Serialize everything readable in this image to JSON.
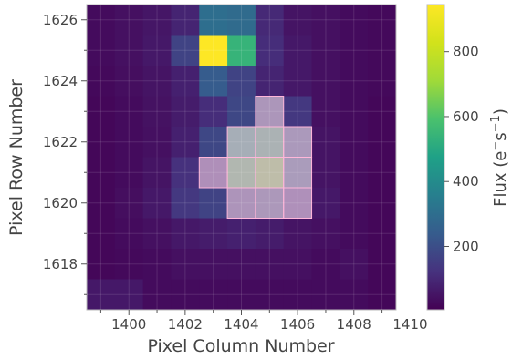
{
  "chart_data": {
    "type": "heatmap",
    "title": "",
    "xlabel": "Pixel Column Number",
    "ylabel": "Pixel Row Number",
    "col_range": [
      1399,
      1410
    ],
    "row_range": [
      1617,
      1627
    ],
    "x_ticks": [
      "1400",
      "1402",
      "1404",
      "1406",
      "1408",
      "1410"
    ],
    "y_ticks": [
      "1618",
      "1620",
      "1622",
      "1624",
      "1626"
    ],
    "grid": true,
    "colormap": "viridis",
    "colorbar": {
      "label_base": "Flux (e",
      "label_sup1": "−",
      "label_mid": "s",
      "label_sup2": "−1",
      "label_end": ")",
      "range": [
        5,
        945
      ],
      "ticks": [
        "200",
        "400",
        "600",
        "800"
      ]
    },
    "mask_color": "#ffb6d9",
    "rows_top_to_bottom": [
      1626,
      1625,
      1624,
      1623,
      1622,
      1621,
      1620,
      1619,
      1618,
      1617
    ],
    "cols_left_to_right": [
      1399,
      1400,
      1401,
      1402,
      1403,
      1404,
      1405,
      1406,
      1407,
      1408,
      1409
    ],
    "flux": [
      [
        30,
        40,
        55,
        90,
        300,
        290,
        100,
        50,
        40,
        30,
        25
      ],
      [
        30,
        40,
        60,
        170,
        945,
        540,
        110,
        60,
        40,
        30,
        25
      ],
      [
        25,
        35,
        50,
        80,
        240,
        170,
        90,
        60,
        40,
        30,
        25
      ],
      [
        20,
        30,
        45,
        70,
        110,
        180,
        280,
        140,
        40,
        30,
        20
      ],
      [
        20,
        30,
        40,
        80,
        180,
        480,
        520,
        300,
        50,
        30,
        20
      ],
      [
        20,
        30,
        50,
        120,
        220,
        560,
        620,
        330,
        50,
        30,
        20
      ],
      [
        20,
        35,
        60,
        140,
        170,
        260,
        290,
        230,
        60,
        30,
        20
      ],
      [
        20,
        30,
        40,
        60,
        70,
        80,
        70,
        50,
        40,
        30,
        20
      ],
      [
        20,
        25,
        30,
        40,
        40,
        40,
        40,
        40,
        30,
        40,
        20
      ],
      [
        60,
        60,
        30,
        30,
        30,
        30,
        30,
        30,
        30,
        30,
        20
      ]
    ],
    "aperture_mask": [
      [
        0,
        0,
        0,
        0,
        0,
        0,
        0,
        0,
        0,
        0,
        0
      ],
      [
        0,
        0,
        0,
        0,
        0,
        0,
        0,
        0,
        0,
        0,
        0
      ],
      [
        0,
        0,
        0,
        0,
        0,
        0,
        0,
        0,
        0,
        0,
        0
      ],
      [
        0,
        0,
        0,
        0,
        0,
        0,
        1,
        0,
        0,
        0,
        0
      ],
      [
        0,
        0,
        0,
        0,
        0,
        1,
        1,
        1,
        0,
        0,
        0
      ],
      [
        0,
        0,
        0,
        0,
        1,
        1,
        1,
        1,
        0,
        0,
        0
      ],
      [
        0,
        0,
        0,
        0,
        0,
        1,
        1,
        1,
        0,
        0,
        0
      ],
      [
        0,
        0,
        0,
        0,
        0,
        0,
        0,
        0,
        0,
        0,
        0
      ],
      [
        0,
        0,
        0,
        0,
        0,
        0,
        0,
        0,
        0,
        0,
        0
      ],
      [
        0,
        0,
        0,
        0,
        0,
        0,
        0,
        0,
        0,
        0,
        0
      ]
    ]
  }
}
